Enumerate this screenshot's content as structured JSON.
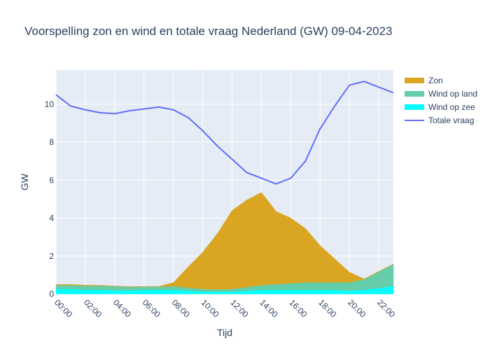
{
  "chart_data": {
    "type": "area",
    "title": "Voorspelling zon en wind en totale vraag Nederland (GW) 09-04-2023",
    "xlabel": "Tijd",
    "ylabel": "GW",
    "x_ticks": [
      "00:00",
      "02:00",
      "04:00",
      "06:00",
      "08:00",
      "10:00",
      "12:00",
      "14:00",
      "16:00",
      "18:00",
      "20:00",
      "22:00"
    ],
    "y_ticks": [
      0,
      2,
      4,
      6,
      8,
      10
    ],
    "xlim": [
      0,
      23
    ],
    "ylim": [
      0,
      11.8
    ],
    "grid": true,
    "legend_position": "right",
    "hours": [
      0,
      1,
      2,
      3,
      4,
      5,
      6,
      7,
      8,
      9,
      10,
      11,
      12,
      13,
      14,
      15,
      16,
      17,
      18,
      19,
      20,
      21,
      22,
      23
    ],
    "series": [
      {
        "name": "Zon",
        "kind": "stacked_area",
        "color": "#daa520",
        "values": [
          0.05,
          0.05,
          0.05,
          0.04,
          0.03,
          0.03,
          0.03,
          0.03,
          0.2,
          1.1,
          1.95,
          2.95,
          4.15,
          4.6,
          4.9,
          3.85,
          3.45,
          2.85,
          1.95,
          1.25,
          0.55,
          0.04,
          0.04,
          0.03
        ]
      },
      {
        "name": "Wind op land",
        "kind": "stacked_area",
        "color": "#66cdaa",
        "values": [
          0.2,
          0.2,
          0.22,
          0.22,
          0.22,
          0.2,
          0.17,
          0.17,
          0.2,
          0.17,
          0.15,
          0.13,
          0.15,
          0.2,
          0.25,
          0.3,
          0.35,
          0.4,
          0.4,
          0.4,
          0.45,
          0.55,
          0.85,
          1.15
        ]
      },
      {
        "name": "Wind op zee",
        "kind": "stacked_area",
        "color": "#00ffff",
        "values": [
          0.25,
          0.25,
          0.2,
          0.2,
          0.17,
          0.16,
          0.2,
          0.2,
          0.2,
          0.15,
          0.1,
          0.1,
          0.1,
          0.15,
          0.2,
          0.2,
          0.2,
          0.2,
          0.2,
          0.2,
          0.15,
          0.2,
          0.3,
          0.4
        ]
      },
      {
        "name": "Totale vraag",
        "kind": "line",
        "color": "#636efa",
        "values": [
          10.5,
          9.9,
          9.7,
          9.55,
          9.5,
          9.65,
          9.75,
          9.85,
          9.7,
          9.3,
          8.6,
          7.8,
          7.1,
          6.4,
          6.1,
          5.8,
          6.1,
          7.0,
          8.7,
          9.9,
          11.0,
          11.2,
          10.9,
          10.6
        ]
      }
    ]
  }
}
